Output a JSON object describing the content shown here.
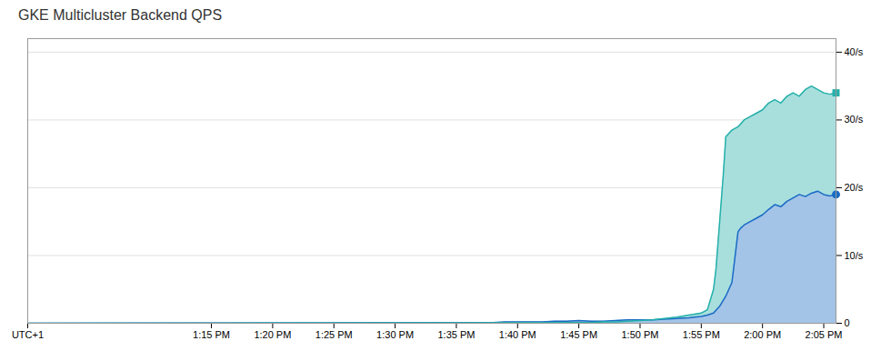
{
  "chart_data": {
    "type": "area",
    "title": "GKE Multicluster Backend QPS",
    "xlim": [
      0,
      66
    ],
    "xticks": [
      {
        "value": 0,
        "label": "UTC+1"
      },
      {
        "value": 15,
        "label": "1:15 PM"
      },
      {
        "value": 20,
        "label": "1:20 PM"
      },
      {
        "value": 25,
        "label": "1:25 PM"
      },
      {
        "value": 30,
        "label": "1:30 PM"
      },
      {
        "value": 35,
        "label": "1:35 PM"
      },
      {
        "value": 40,
        "label": "1:40 PM"
      },
      {
        "value": 45,
        "label": "1:45 PM"
      },
      {
        "value": 50,
        "label": "1:50 PM"
      },
      {
        "value": 55,
        "label": "1:55 PM"
      },
      {
        "value": 60,
        "label": "2:00 PM"
      },
      {
        "value": 65,
        "label": "2:05 PM"
      }
    ],
    "ylim": [
      0,
      42
    ],
    "yticks": [
      0,
      {
        "value": 10,
        "label": "10/s"
      },
      {
        "value": 20,
        "label": "20/s"
      },
      {
        "value": 30,
        "label": "30/s"
      },
      {
        "value": 40,
        "label": "40/s"
      }
    ],
    "grid": "y",
    "series": [
      {
        "color": "#1a6bc4",
        "marker": "circle",
        "x": [
          0,
          36,
          37,
          38,
          39,
          40,
          41,
          42,
          43,
          44,
          45,
          46,
          47,
          48,
          49,
          50,
          51,
          52,
          53,
          54,
          55,
          55.5,
          56,
          56.5,
          57,
          57.5,
          58,
          58.2,
          58.5,
          58.8,
          59,
          59.5,
          60,
          60.5,
          61,
          61.5,
          62,
          62.5,
          63,
          63.5,
          64,
          64.5,
          65,
          65.5,
          66
        ],
        "values": [
          0,
          0.1,
          0.1,
          0.1,
          0.2,
          0.2,
          0.2,
          0.2,
          0.3,
          0.3,
          0.4,
          0.3,
          0.3,
          0.4,
          0.5,
          0.5,
          0.5,
          0.6,
          0.7,
          0.8,
          1.0,
          1.2,
          1.5,
          2.5,
          4.0,
          6.0,
          13.5,
          14.0,
          14.5,
          14.8,
          15.0,
          15.5,
          16.0,
          16.8,
          17.5,
          17.2,
          18.0,
          18.5,
          19.0,
          18.7,
          19.2,
          19.5,
          19.0,
          18.8,
          19.0
        ]
      },
      {
        "color": "#26b0aa",
        "marker": "square",
        "x": [
          0,
          45,
          46,
          47,
          48,
          49,
          50,
          51,
          52,
          53,
          54,
          55,
          55.5,
          56,
          56.2,
          56.5,
          56.8,
          57,
          57.5,
          58,
          58.5,
          59,
          59.5,
          60,
          60.5,
          61,
          61.5,
          62,
          62.5,
          63,
          63.5,
          64,
          64.5,
          65,
          65.5,
          66
        ],
        "values": [
          0,
          0.1,
          0.1,
          0.2,
          0.2,
          0.3,
          0.4,
          0.5,
          0.7,
          0.9,
          1.2,
          1.5,
          2.0,
          5.0,
          8.0,
          15.0,
          22.0,
          27.5,
          28.5,
          29.0,
          30.0,
          30.5,
          31.0,
          31.5,
          32.5,
          33.0,
          32.5,
          33.5,
          34.0,
          33.5,
          34.5,
          35.0,
          34.5,
          34.0,
          33.8,
          34.0
        ]
      }
    ]
  }
}
